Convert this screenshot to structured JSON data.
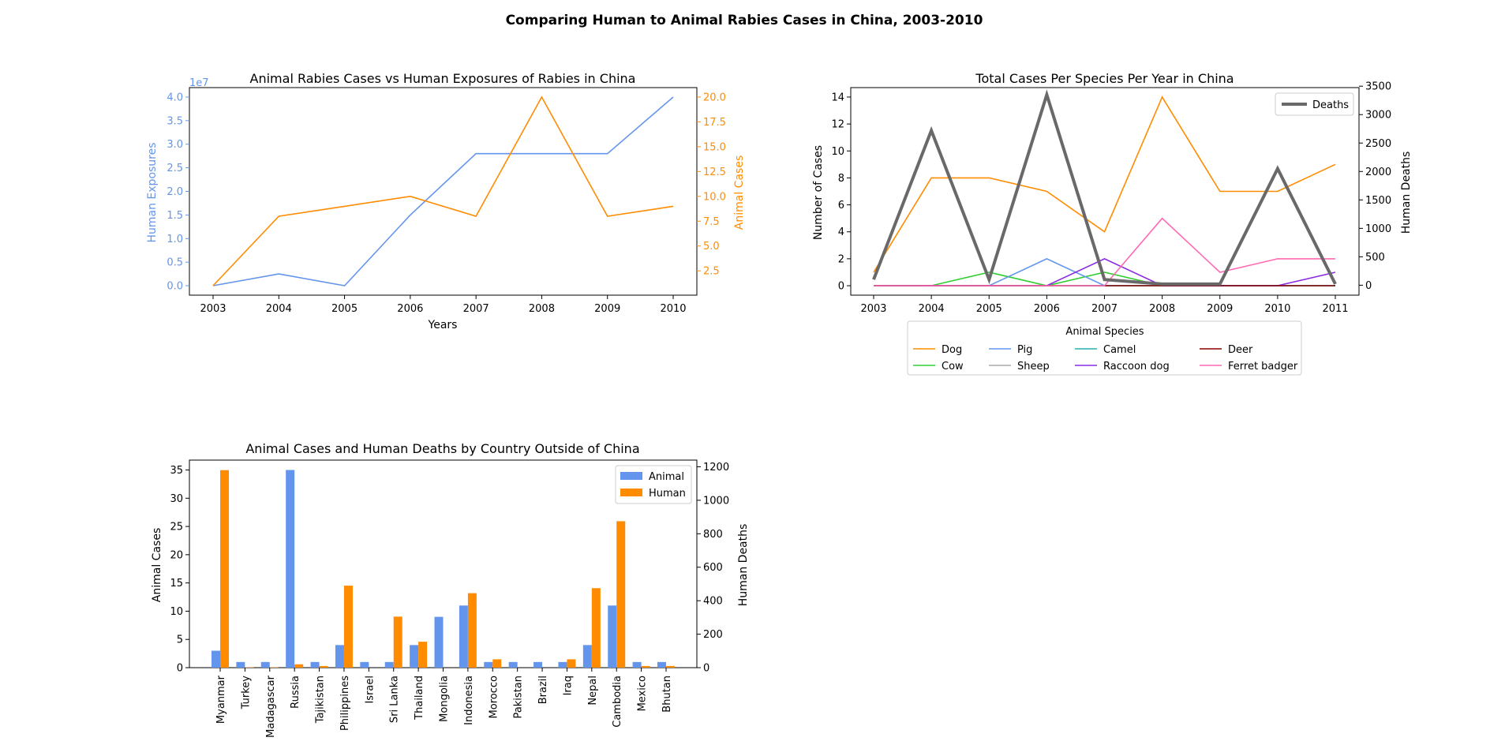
{
  "suptitle": "Comparing Human to Animal Rabies Cases in China, 2003-2010",
  "colors": {
    "blue": "#6495ED",
    "orange": "#FF8C00",
    "gray": "#696969"
  },
  "chart_data": [
    {
      "type": "line",
      "title": "Animal Rabies Cases vs Human Exposures of Rabies in China",
      "xlabel": "Years",
      "x": [
        2003,
        2004,
        2005,
        2006,
        2007,
        2008,
        2009,
        2010
      ],
      "y_left": {
        "label": "Human Exposures",
        "offset_text": "1e7",
        "ylim": [
          -0.2,
          4.2
        ],
        "ticks": [
          "0.0",
          "0.5",
          "1.0",
          "1.5",
          "2.0",
          "2.5",
          "3.0",
          "3.5",
          "4.0"
        ],
        "values": [
          0.0,
          0.25,
          0.0,
          1.5,
          2.8,
          2.8,
          2.8,
          4.0
        ],
        "color": "#6495ED"
      },
      "y_right": {
        "label": "Animal Cases",
        "ylim": [
          0.05,
          20.95
        ],
        "ticks": [
          "2.5",
          "5.0",
          "7.5",
          "10.0",
          "12.5",
          "15.0",
          "17.5",
          "20.0"
        ],
        "values": [
          1,
          8,
          9,
          10,
          8,
          20,
          8,
          9
        ],
        "color": "#FF8C00"
      }
    },
    {
      "type": "line",
      "title": "Total Cases Per Species Per Year in China",
      "ylabel_left": "Number of Cases",
      "ylabel_right": "Human Deaths",
      "x": [
        2003,
        2004,
        2005,
        2006,
        2007,
        2008,
        2009,
        2010,
        2011
      ],
      "ylim_left": [
        -0.7,
        14.7
      ],
      "yticks_left": [
        "0",
        "2",
        "4",
        "6",
        "8",
        "10",
        "12",
        "14"
      ],
      "ylim_right": [
        -175,
        3475
      ],
      "yticks_right": [
        "0",
        "500",
        "1000",
        "1500",
        "2000",
        "2500",
        "3000",
        "3500"
      ],
      "legend_title": "Animal Species",
      "series": [
        {
          "name": "Dog",
          "color": "#FF8C00",
          "values": [
            1,
            8,
            8,
            7,
            4,
            14,
            7,
            7,
            9
          ]
        },
        {
          "name": "Cow",
          "color": "#32CD32",
          "values": [
            0,
            0,
            1,
            0,
            1,
            0,
            0,
            0,
            0
          ]
        },
        {
          "name": "Pig",
          "color": "#6495ED",
          "values": [
            0,
            0,
            0,
            2,
            0,
            0,
            0,
            0,
            0
          ]
        },
        {
          "name": "Sheep",
          "color": "#A9A9A9",
          "values": [
            0,
            0,
            0,
            0,
            0,
            0,
            0,
            0,
            0
          ]
        },
        {
          "name": "Camel",
          "color": "#20B2AA",
          "values": [
            0,
            0,
            0,
            0,
            0,
            0,
            0,
            0,
            0
          ]
        },
        {
          "name": "Raccoon dog",
          "color": "#8A2BE2",
          "values": [
            0,
            0,
            0,
            0,
            2,
            0,
            0,
            0,
            1
          ]
        },
        {
          "name": "Deer",
          "color": "#8B0000",
          "values": [
            0,
            0,
            0,
            0,
            0,
            0,
            0,
            0,
            0
          ]
        },
        {
          "name": "Ferret badger",
          "color": "#FF69B4",
          "values": [
            0,
            0,
            0,
            0,
            0,
            5,
            1,
            2,
            2
          ]
        }
      ],
      "deaths": {
        "name": "Deaths",
        "color": "#696969",
        "values": [
          100,
          2720,
          100,
          3350,
          100,
          20,
          20,
          2050,
          20
        ]
      }
    },
    {
      "type": "bar",
      "title": "Animal Cases and Human Deaths by Country Outside of China",
      "ylabel_left": "Animal Cases",
      "ylabel_right": "Human Deaths",
      "categories": [
        "Myanmar",
        "Turkey",
        "Madagascar",
        "Russia",
        "Tajikistan",
        "Philippines",
        "Israel",
        "Sri Lanka",
        "Thailand",
        "Mongolia",
        "Indonesia",
        "Morocco",
        "Pakistan",
        "Brazil",
        "Iraq",
        "Nepal",
        "Cambodia",
        "Mexico",
        "Bhutan"
      ],
      "ylim_left": [
        0,
        36.75
      ],
      "yticks_left": [
        "0",
        "5",
        "10",
        "15",
        "20",
        "25",
        "30",
        "35"
      ],
      "ylim_right": [
        0,
        1240
      ],
      "yticks_right": [
        "0",
        "200",
        "400",
        "600",
        "800",
        "1000",
        "1200"
      ],
      "series": [
        {
          "name": "Animal",
          "color": "#6495ED",
          "axis": "left",
          "values": [
            3,
            1,
            1,
            35,
            1,
            4,
            1,
            1,
            4,
            9,
            11,
            1,
            1,
            1,
            1,
            4,
            11,
            1,
            1
          ]
        },
        {
          "name": "Human",
          "color": "#FF8C00",
          "axis": "right",
          "values": [
            1180,
            2,
            2,
            20,
            10,
            490,
            0,
            305,
            155,
            0,
            445,
            50,
            0,
            0,
            50,
            475,
            875,
            10,
            10
          ]
        }
      ]
    }
  ]
}
